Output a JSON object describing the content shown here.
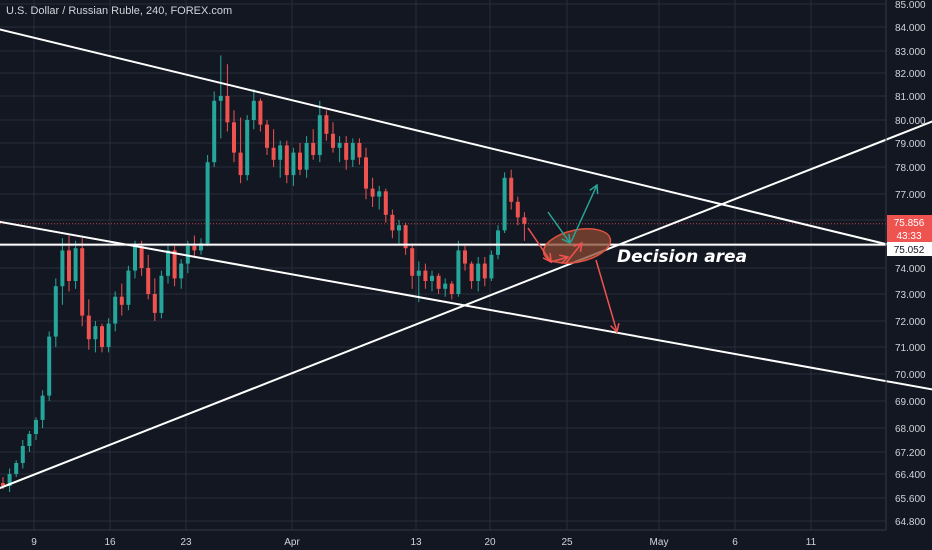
{
  "chart_data": {
    "type": "candlestick",
    "title": "U.S. Dollar / Russian Ruble, 240, FOREX.com",
    "colors": {
      "background": "#131722",
      "grid": "#2a2e39",
      "up": "#26a69a",
      "down": "#ef5350",
      "text": "#d1d4dc",
      "trendline": "#ffffff",
      "arrow_up": "#26a69a",
      "arrow_down": "#ef5350",
      "ellipse_fill": "#8a4a33",
      "ellipse_stroke": "#e0523f"
    },
    "y_axis": {
      "ticks": [
        "85.000",
        "84.000",
        "83.000",
        "82.000",
        "81.000",
        "80.000",
        "79.000",
        "78.000",
        "77.000",
        "76.000",
        "75.000",
        "74.000",
        "73.000",
        "72.000",
        "71.000",
        "70.000",
        "69.000",
        "68.000",
        "67.200",
        "66.400",
        "65.600",
        "64.800"
      ]
    },
    "x_axis": {
      "ticks": [
        "9",
        "16",
        "23",
        "Apr",
        "13",
        "20",
        "25",
        "May",
        "6",
        "11"
      ]
    },
    "price_labels": {
      "last_price": "75.856",
      "countdown": "43:33",
      "horizontal_level": "75.052"
    },
    "annotation": "Decision area",
    "series": [
      {
        "t": 0,
        "o": 66.1,
        "h": 66.3,
        "l": 65.9,
        "c": 66.0
      },
      {
        "t": 1,
        "o": 66.0,
        "h": 66.6,
        "l": 65.8,
        "c": 66.4
      },
      {
        "t": 2,
        "o": 66.4,
        "h": 66.9,
        "l": 66.3,
        "c": 66.8
      },
      {
        "t": 3,
        "o": 66.8,
        "h": 67.6,
        "l": 66.6,
        "c": 67.4
      },
      {
        "t": 4,
        "o": 67.4,
        "h": 67.9,
        "l": 67.2,
        "c": 67.8
      },
      {
        "t": 5,
        "o": 67.8,
        "h": 68.4,
        "l": 67.6,
        "c": 68.3
      },
      {
        "t": 6,
        "o": 68.3,
        "h": 69.4,
        "l": 68.0,
        "c": 69.2
      },
      {
        "t": 7,
        "o": 69.2,
        "h": 71.6,
        "l": 69.0,
        "c": 71.4
      },
      {
        "t": 8,
        "o": 71.4,
        "h": 73.6,
        "l": 71.0,
        "c": 73.3
      },
      {
        "t": 9,
        "o": 73.3,
        "h": 75.3,
        "l": 72.6,
        "c": 74.8
      },
      {
        "t": 10,
        "o": 74.8,
        "h": 75.4,
        "l": 73.1,
        "c": 73.5
      },
      {
        "t": 11,
        "o": 73.5,
        "h": 75.2,
        "l": 73.2,
        "c": 74.9
      },
      {
        "t": 12,
        "o": 74.9,
        "h": 75.3,
        "l": 71.8,
        "c": 72.2
      },
      {
        "t": 13,
        "o": 72.2,
        "h": 72.8,
        "l": 70.9,
        "c": 71.3
      },
      {
        "t": 14,
        "o": 71.3,
        "h": 72.0,
        "l": 70.8,
        "c": 71.8
      },
      {
        "t": 15,
        "o": 71.8,
        "h": 71.9,
        "l": 70.8,
        "c": 71.0
      },
      {
        "t": 16,
        "o": 71.0,
        "h": 72.1,
        "l": 70.8,
        "c": 71.9
      },
      {
        "t": 17,
        "o": 71.9,
        "h": 73.1,
        "l": 71.6,
        "c": 72.9
      },
      {
        "t": 18,
        "o": 72.9,
        "h": 73.4,
        "l": 72.2,
        "c": 72.6
      },
      {
        "t": 19,
        "o": 72.6,
        "h": 74.1,
        "l": 72.4,
        "c": 73.9
      },
      {
        "t": 20,
        "o": 73.9,
        "h": 75.2,
        "l": 73.6,
        "c": 75.0
      },
      {
        "t": 21,
        "o": 75.0,
        "h": 75.2,
        "l": 73.7,
        "c": 74.0
      },
      {
        "t": 22,
        "o": 74.0,
        "h": 74.6,
        "l": 72.8,
        "c": 73.0
      },
      {
        "t": 23,
        "o": 73.0,
        "h": 73.6,
        "l": 72.0,
        "c": 72.3
      },
      {
        "t": 24,
        "o": 72.3,
        "h": 73.9,
        "l": 72.1,
        "c": 73.7
      },
      {
        "t": 25,
        "o": 73.7,
        "h": 75.1,
        "l": 73.4,
        "c": 74.8
      },
      {
        "t": 26,
        "o": 74.8,
        "h": 75.0,
        "l": 73.3,
        "c": 73.6
      },
      {
        "t": 27,
        "o": 73.6,
        "h": 74.4,
        "l": 73.2,
        "c": 74.2
      },
      {
        "t": 28,
        "o": 74.2,
        "h": 75.2,
        "l": 73.8,
        "c": 75.0
      },
      {
        "t": 29,
        "o": 75.0,
        "h": 75.4,
        "l": 74.5,
        "c": 74.8
      },
      {
        "t": 30,
        "o": 74.8,
        "h": 75.3,
        "l": 74.6,
        "c": 75.1
      },
      {
        "t": 31,
        "o": 75.1,
        "h": 78.5,
        "l": 75.0,
        "c": 78.2
      },
      {
        "t": 32,
        "o": 78.2,
        "h": 81.2,
        "l": 78.0,
        "c": 80.8
      },
      {
        "t": 33,
        "o": 80.8,
        "h": 82.8,
        "l": 79.2,
        "c": 81.0
      },
      {
        "t": 34,
        "o": 81.0,
        "h": 82.4,
        "l": 79.5,
        "c": 79.9
      },
      {
        "t": 35,
        "o": 79.9,
        "h": 80.4,
        "l": 78.2,
        "c": 78.6
      },
      {
        "t": 36,
        "o": 78.6,
        "h": 80.1,
        "l": 77.4,
        "c": 77.7
      },
      {
        "t": 37,
        "o": 77.7,
        "h": 80.2,
        "l": 77.5,
        "c": 80.0
      },
      {
        "t": 38,
        "o": 80.0,
        "h": 81.3,
        "l": 79.6,
        "c": 80.8
      },
      {
        "t": 39,
        "o": 80.8,
        "h": 80.9,
        "l": 79.5,
        "c": 79.8
      },
      {
        "t": 40,
        "o": 79.8,
        "h": 80.0,
        "l": 78.5,
        "c": 78.8
      },
      {
        "t": 41,
        "o": 78.8,
        "h": 79.6,
        "l": 78.0,
        "c": 78.3
      },
      {
        "t": 42,
        "o": 78.3,
        "h": 79.1,
        "l": 77.6,
        "c": 78.9
      },
      {
        "t": 43,
        "o": 78.9,
        "h": 79.1,
        "l": 77.4,
        "c": 77.7
      },
      {
        "t": 44,
        "o": 77.7,
        "h": 78.8,
        "l": 77.3,
        "c": 78.6
      },
      {
        "t": 45,
        "o": 78.6,
        "h": 79.0,
        "l": 77.7,
        "c": 77.9
      },
      {
        "t": 46,
        "o": 77.9,
        "h": 79.3,
        "l": 77.6,
        "c": 79.0
      },
      {
        "t": 47,
        "o": 79.0,
        "h": 79.6,
        "l": 78.3,
        "c": 78.5
      },
      {
        "t": 48,
        "o": 78.5,
        "h": 80.8,
        "l": 78.2,
        "c": 80.2
      },
      {
        "t": 49,
        "o": 80.2,
        "h": 80.4,
        "l": 79.1,
        "c": 79.4
      },
      {
        "t": 50,
        "o": 79.4,
        "h": 79.9,
        "l": 78.6,
        "c": 78.8
      },
      {
        "t": 51,
        "o": 78.8,
        "h": 79.3,
        "l": 78.2,
        "c": 79.0
      },
      {
        "t": 52,
        "o": 79.0,
        "h": 79.3,
        "l": 77.9,
        "c": 78.3
      },
      {
        "t": 53,
        "o": 78.3,
        "h": 79.2,
        "l": 78.0,
        "c": 79.0
      },
      {
        "t": 54,
        "o": 79.0,
        "h": 79.2,
        "l": 78.1,
        "c": 78.4
      },
      {
        "t": 55,
        "o": 78.4,
        "h": 78.8,
        "l": 76.8,
        "c": 77.2
      },
      {
        "t": 56,
        "o": 77.2,
        "h": 77.6,
        "l": 76.5,
        "c": 76.9
      },
      {
        "t": 57,
        "o": 76.9,
        "h": 77.3,
        "l": 76.4,
        "c": 77.1
      },
      {
        "t": 58,
        "o": 77.1,
        "h": 77.2,
        "l": 75.9,
        "c": 76.2
      },
      {
        "t": 59,
        "o": 76.2,
        "h": 76.4,
        "l": 75.3,
        "c": 75.6
      },
      {
        "t": 60,
        "o": 75.6,
        "h": 76.0,
        "l": 75.1,
        "c": 75.8
      },
      {
        "t": 61,
        "o": 75.8,
        "h": 75.9,
        "l": 74.6,
        "c": 74.9
      },
      {
        "t": 62,
        "o": 74.9,
        "h": 75.1,
        "l": 73.2,
        "c": 73.7
      },
      {
        "t": 63,
        "o": 73.7,
        "h": 74.3,
        "l": 72.7,
        "c": 73.9
      },
      {
        "t": 64,
        "o": 73.9,
        "h": 74.2,
        "l": 73.2,
        "c": 73.5
      },
      {
        "t": 65,
        "o": 73.5,
        "h": 73.9,
        "l": 73.1,
        "c": 73.7
      },
      {
        "t": 66,
        "o": 73.7,
        "h": 73.8,
        "l": 73.0,
        "c": 73.2
      },
      {
        "t": 67,
        "o": 73.2,
        "h": 73.6,
        "l": 72.9,
        "c": 73.4
      },
      {
        "t": 68,
        "o": 73.4,
        "h": 73.5,
        "l": 72.8,
        "c": 73.0
      },
      {
        "t": 69,
        "o": 73.0,
        "h": 75.2,
        "l": 72.9,
        "c": 74.8
      },
      {
        "t": 70,
        "o": 74.8,
        "h": 75.0,
        "l": 73.9,
        "c": 74.2
      },
      {
        "t": 71,
        "o": 74.2,
        "h": 74.3,
        "l": 73.2,
        "c": 73.5
      },
      {
        "t": 72,
        "o": 73.5,
        "h": 74.5,
        "l": 73.1,
        "c": 74.2
      },
      {
        "t": 73,
        "o": 74.2,
        "h": 74.5,
        "l": 73.3,
        "c": 73.6
      },
      {
        "t": 74,
        "o": 73.6,
        "h": 74.8,
        "l": 73.5,
        "c": 74.6
      },
      {
        "t": 75,
        "o": 74.6,
        "h": 75.8,
        "l": 74.4,
        "c": 75.6
      },
      {
        "t": 76,
        "o": 75.6,
        "h": 77.8,
        "l": 75.5,
        "c": 77.6
      },
      {
        "t": 77,
        "o": 77.6,
        "h": 77.9,
        "l": 76.4,
        "c": 76.7
      },
      {
        "t": 78,
        "o": 76.7,
        "h": 76.9,
        "l": 75.8,
        "c": 76.1
      },
      {
        "t": 79,
        "o": 76.1,
        "h": 76.3,
        "l": 75.2,
        "c": 75.856
      }
    ],
    "drawings": [
      {
        "name": "upper-downtrend-line",
        "from": {
          "t": -2,
          "p": 84.0
        },
        "to": {
          "t": 146,
          "p": 74.2
        }
      },
      {
        "name": "lower-downtrend-line",
        "from": {
          "t": -2,
          "p": 76.0
        },
        "to": {
          "t": 146,
          "p": 69.2
        }
      },
      {
        "name": "rising-support-line",
        "from": {
          "t": -2,
          "p": 65.8
        },
        "to": {
          "t": 146,
          "p": 80.5
        }
      },
      {
        "name": "horizontal-level-line",
        "price": 75.052
      }
    ]
  }
}
